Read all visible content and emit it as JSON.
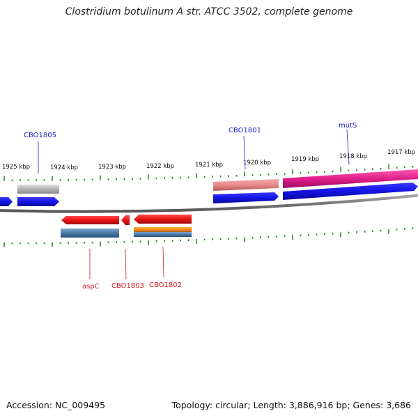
{
  "title": "Clostridium botulinum A str. ATCC 3502, complete genome",
  "footer": {
    "accession": "Accession: NC_009495",
    "summary": "Topology: circular; Length: 3,886,916 bp; Genes: 3,686"
  },
  "scale_labels": [
    "1925 kbp",
    "1924 kbp",
    "1923 kbp",
    "1922 kbp",
    "1921 kbp",
    "1920 kbp",
    "1919 kbp",
    "1918 kbp",
    "1917 kbp"
  ],
  "gene_labels": [
    {
      "id": "CBO1805",
      "text": "CBO1805",
      "strand": "forward"
    },
    {
      "id": "CBO1801",
      "text": "CBO1801",
      "strand": "forward"
    },
    {
      "id": "mutS",
      "text": "mutS",
      "strand": "forward"
    },
    {
      "id": "aspC",
      "text": "aspC",
      "strand": "reverse"
    },
    {
      "id": "CBO1803",
      "text": "CBO1803",
      "strand": "reverse"
    },
    {
      "id": "CBO1802",
      "text": "CBO1802",
      "strand": "reverse"
    }
  ],
  "colors": {
    "forward_label": "#1a1ad6",
    "reverse_label": "#d61a1a",
    "tick": "#2a8a2a",
    "backbone": "#777777",
    "cds_forward": "#1414e6",
    "cds_reverse": "#e61414",
    "gene_gray": "#b4b4b4",
    "gene_pink": "#e88a8a",
    "gene_magenta": "#e0208a",
    "gene_steel": "#4a7aa8",
    "gene_orange": "#f08c14"
  }
}
